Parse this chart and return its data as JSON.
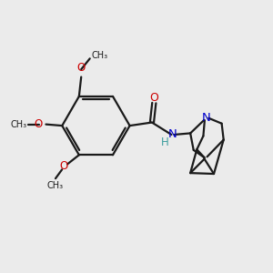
{
  "bg_color": "#ebebeb",
  "bond_color": "#1a1a1a",
  "O_color": "#cc0000",
  "N_color": "#0000cc",
  "NH_color": "#3d9e9e",
  "lw": 1.6,
  "fig_size": [
    3.0,
    3.0
  ],
  "dpi": 100,
  "xlim": [
    0,
    10
  ],
  "ylim": [
    0,
    10
  ]
}
